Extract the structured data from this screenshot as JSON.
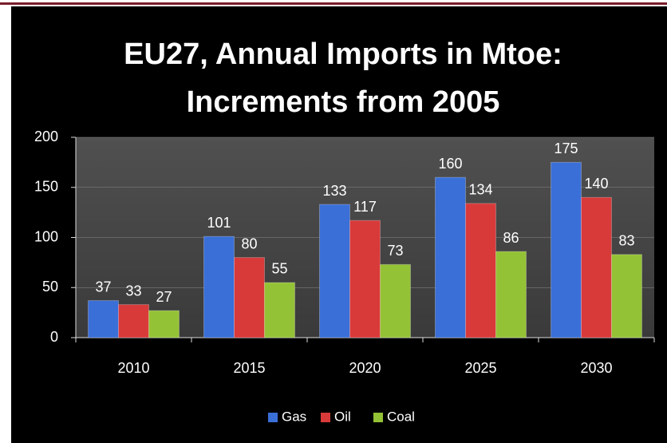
{
  "chart_data": {
    "type": "bar",
    "title": [
      "EU27, Annual Imports in Mtoe:",
      "Increments from 2005"
    ],
    "categories": [
      "2010",
      "2015",
      "2020",
      "2025",
      "2030"
    ],
    "series": [
      {
        "name": "Gas",
        "color": "#3a6fd8",
        "values": [
          37,
          101,
          133,
          160,
          175
        ]
      },
      {
        "name": "Oil",
        "color": "#d83a3a",
        "values": [
          33,
          80,
          117,
          134,
          140
        ]
      },
      {
        "name": "Coal",
        "color": "#94c236",
        "values": [
          27,
          55,
          73,
          86,
          83
        ]
      }
    ],
    "ylim": [
      0,
      200
    ],
    "yticks": [
      0,
      50,
      100,
      150,
      200
    ],
    "grid": true,
    "legend": "bottom"
  }
}
